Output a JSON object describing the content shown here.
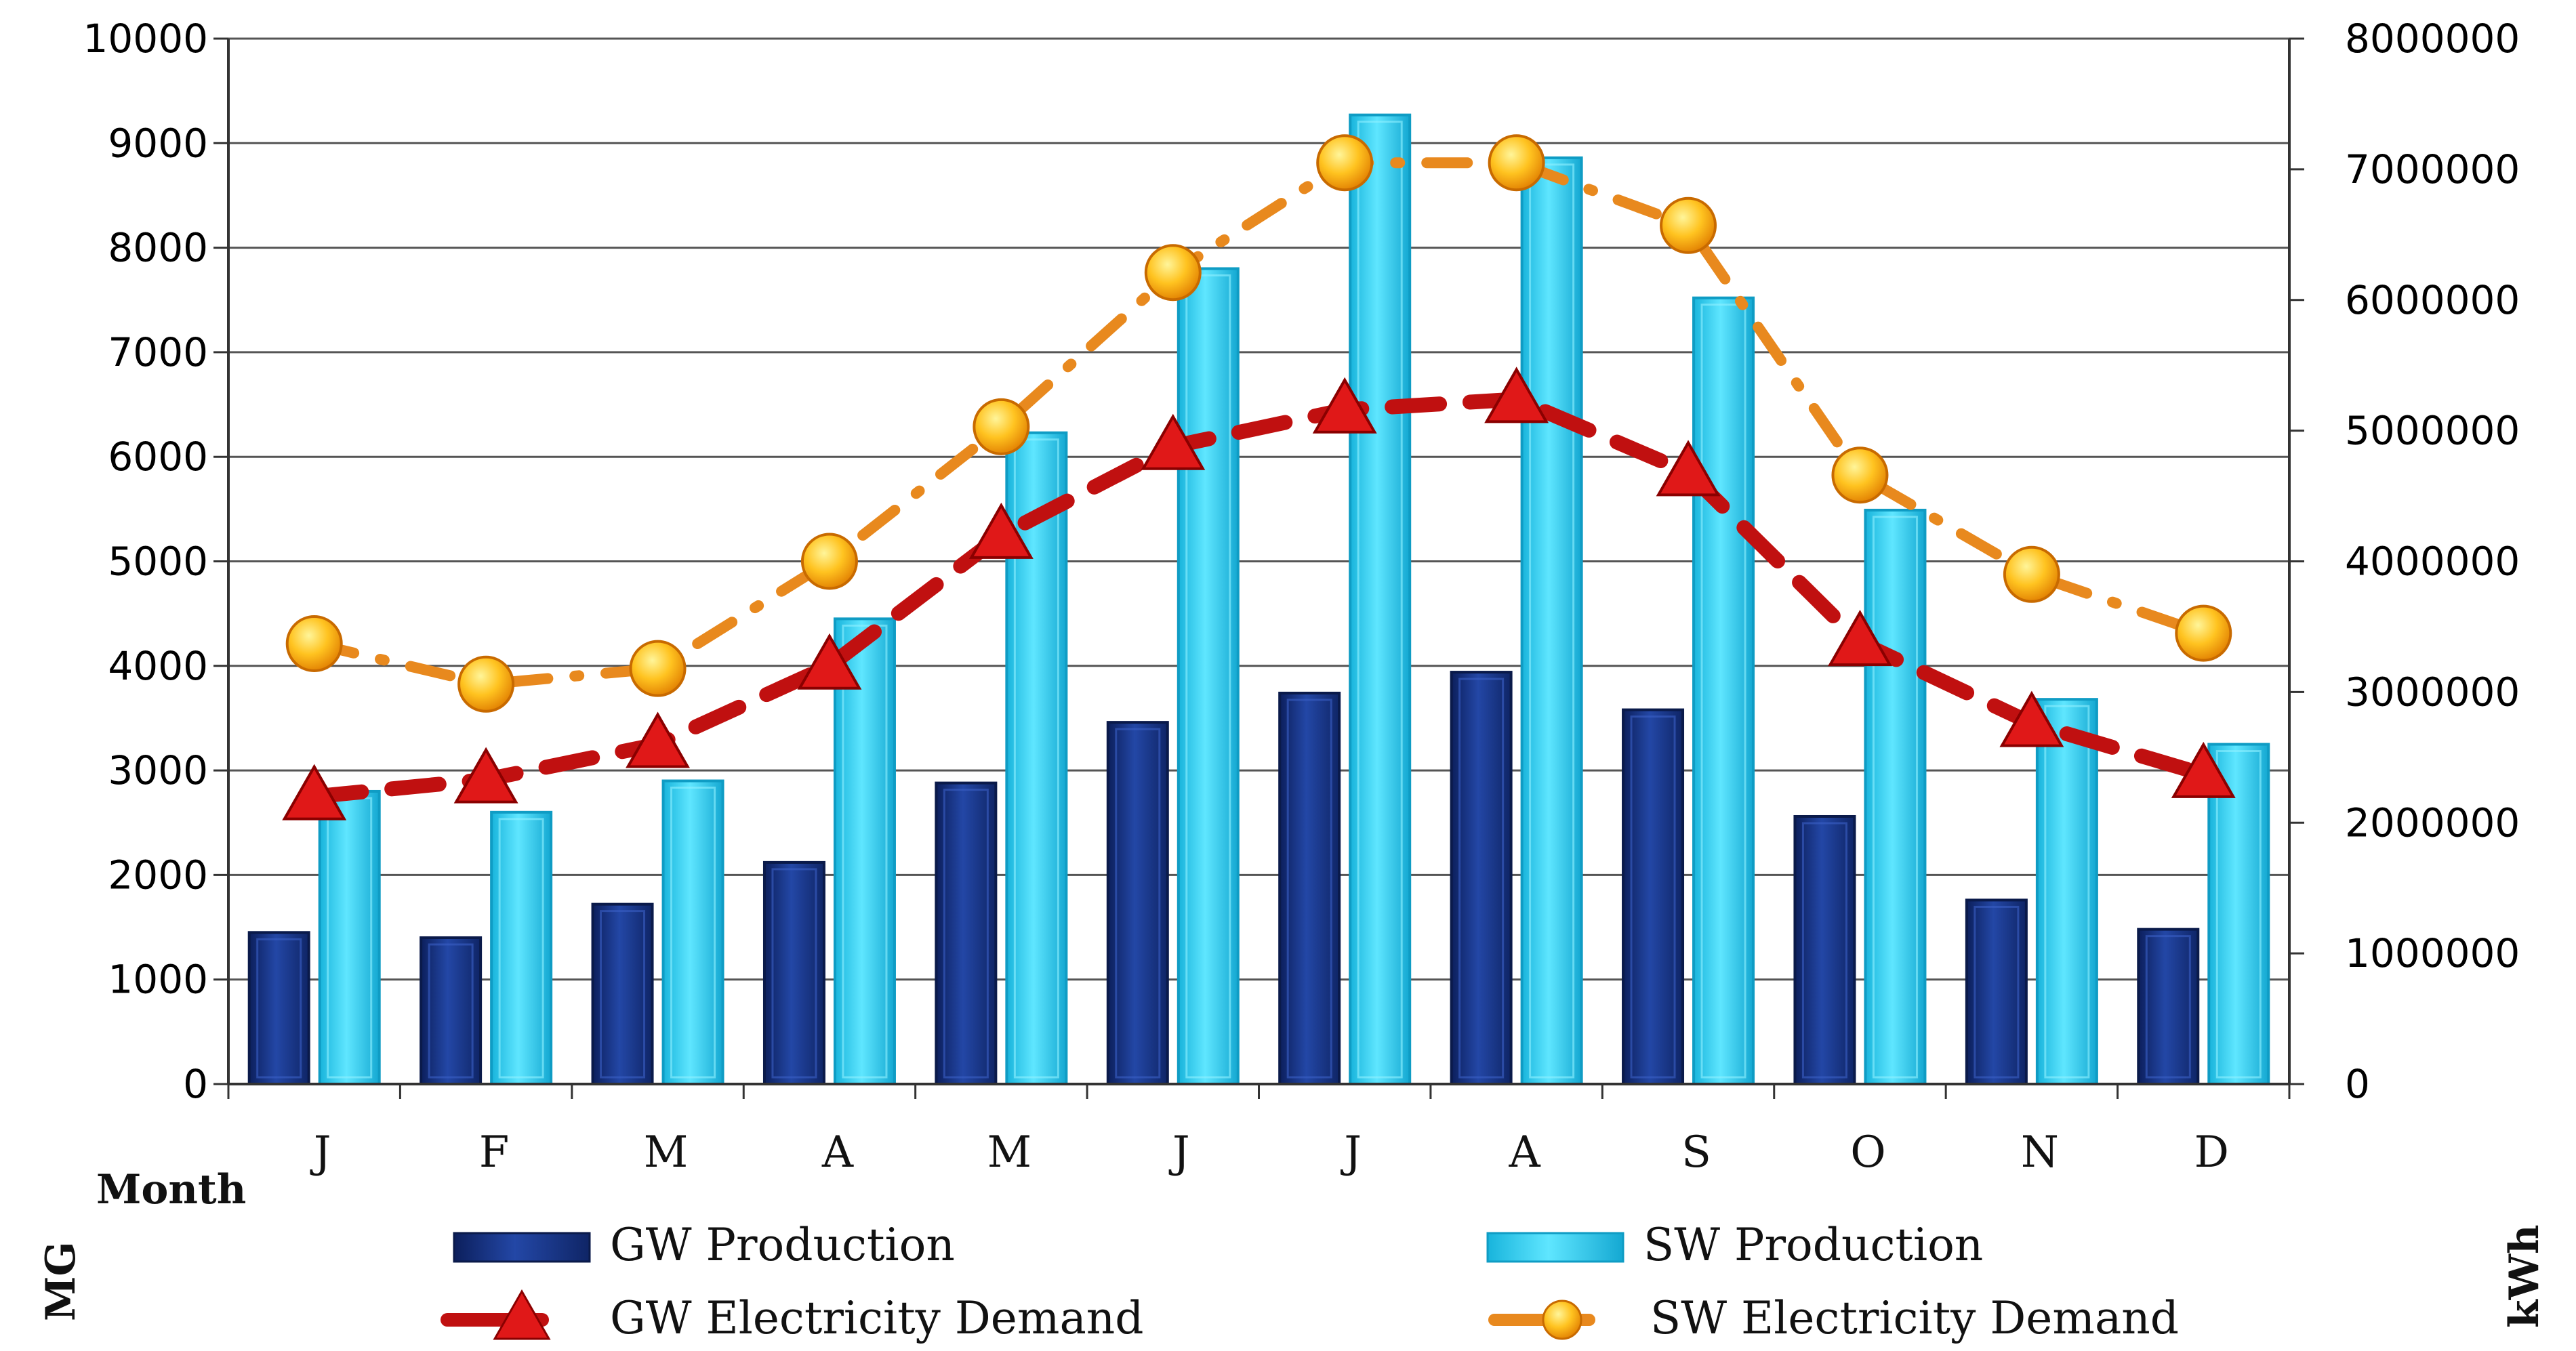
{
  "chart_data": {
    "type": "bar",
    "title": "",
    "xlabel": "Month",
    "ylabel_left": "MG",
    "ylabel_right": "kWh",
    "categories": [
      "J",
      "F",
      "M",
      "A",
      "M",
      "J",
      "J",
      "A",
      "S",
      "O",
      "N",
      "D"
    ],
    "y_left": {
      "lim": [
        0,
        10000
      ],
      "ticks": [
        "0",
        "1000",
        "2000",
        "3000",
        "4000",
        "5000",
        "6000",
        "7000",
        "8000",
        "9000",
        "10000"
      ]
    },
    "y_right": {
      "lim": [
        0,
        8000000
      ],
      "ticks": [
        "0",
        "1000000",
        "2000000",
        "3000000",
        "4000000",
        "5000000",
        "6000000",
        "7000000",
        "8000000"
      ]
    },
    "grid": true,
    "legend_position": "bottom",
    "series": [
      {
        "name": "GW Production",
        "kind": "bar",
        "axis": "left",
        "color": "#1c3a8c",
        "values": [
          1450,
          1400,
          1720,
          2120,
          2880,
          3460,
          3740,
          3940,
          3580,
          2560,
          1760,
          1480
        ]
      },
      {
        "name": "SW Production",
        "kind": "bar",
        "axis": "left",
        "color": "#22c9f2",
        "values": [
          2800,
          2600,
          2900,
          4450,
          6230,
          7800,
          9270,
          8860,
          7520,
          5490,
          3680,
          3250
        ]
      },
      {
        "name": "GW Electricity Demand",
        "kind": "line",
        "axis": "right",
        "color": "#c01010",
        "marker": "triangle",
        "values": [
          2200000,
          2330000,
          2600000,
          3200000,
          4200000,
          4880000,
          5160000,
          5240000,
          4680000,
          3380000,
          2760000,
          2370000
        ]
      },
      {
        "name": "SW Electricity Demand",
        "kind": "line",
        "axis": "right",
        "color": "#e8891e",
        "marker": "circle",
        "values": [
          3370000,
          3060000,
          3180000,
          4000000,
          5030000,
          6210000,
          7050000,
          7050000,
          6570000,
          4660000,
          3900000,
          3450000
        ]
      }
    ]
  }
}
